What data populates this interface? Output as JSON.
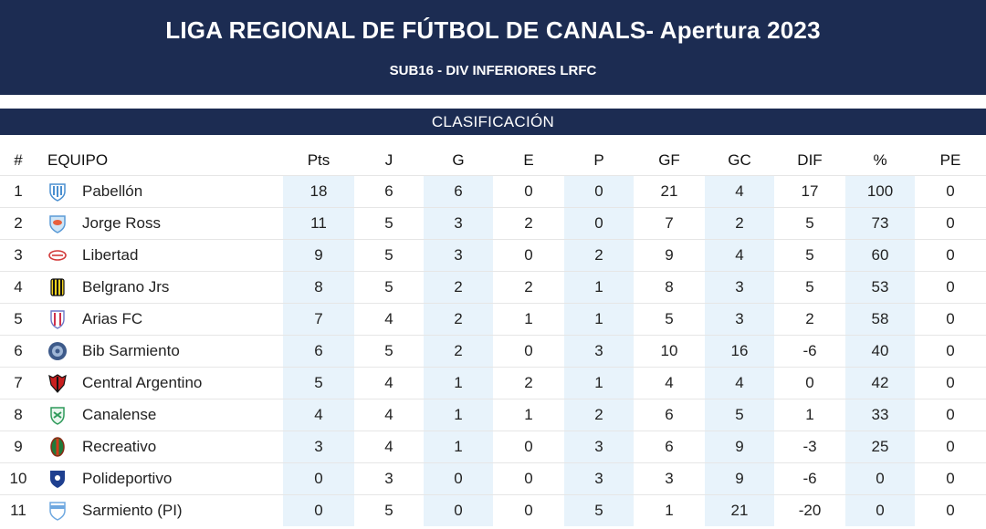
{
  "header": {
    "title": "LIGA REGIONAL DE FÚTBOL DE CANALS- Apertura 2023",
    "subtitle": "SUB16 - DIV INFERIORES LRFC"
  },
  "section_title": "CLASIFICACIÓN",
  "columns": {
    "pos": "#",
    "team": "EQUIPO",
    "pts": "Pts",
    "j": "J",
    "g": "G",
    "e": "E",
    "p": "P",
    "gf": "GF",
    "gc": "GC",
    "dif": "DIF",
    "pct": "%",
    "pe": "PE"
  },
  "colors": {
    "header_bg": "#1c2c52",
    "stripe": "#e8f3fb"
  },
  "rows": [
    {
      "pos": "1",
      "team": "Pabellón",
      "pts": "18",
      "j": "6",
      "g": "6",
      "e": "0",
      "p": "0",
      "gf": "21",
      "gc": "4",
      "dif": "17",
      "pct": "100",
      "pe": "0",
      "crest": "pabellon-crest"
    },
    {
      "pos": "2",
      "team": "Jorge Ross",
      "pts": "11",
      "j": "5",
      "g": "3",
      "e": "2",
      "p": "0",
      "gf": "7",
      "gc": "2",
      "dif": "5",
      "pct": "73",
      "pe": "0",
      "crest": "jorge-ross-crest"
    },
    {
      "pos": "3",
      "team": "Libertad",
      "pts": "9",
      "j": "5",
      "g": "3",
      "e": "0",
      "p": "2",
      "gf": "9",
      "gc": "4",
      "dif": "5",
      "pct": "60",
      "pe": "0",
      "crest": "libertad-crest"
    },
    {
      "pos": "4",
      "team": "Belgrano Jrs",
      "pts": "8",
      "j": "5",
      "g": "2",
      "e": "2",
      "p": "1",
      "gf": "8",
      "gc": "3",
      "dif": "5",
      "pct": "53",
      "pe": "0",
      "crest": "belgrano-crest"
    },
    {
      "pos": "5",
      "team": "Arias FC",
      "pts": "7",
      "j": "4",
      "g": "2",
      "e": "1",
      "p": "1",
      "gf": "5",
      "gc": "3",
      "dif": "2",
      "pct": "58",
      "pe": "0",
      "crest": "arias-crest"
    },
    {
      "pos": "6",
      "team": "Bib Sarmiento",
      "pts": "6",
      "j": "5",
      "g": "2",
      "e": "0",
      "p": "3",
      "gf": "10",
      "gc": "16",
      "dif": "-6",
      "pct": "40",
      "pe": "0",
      "crest": "bib-sarmiento-crest"
    },
    {
      "pos": "7",
      "team": "Central Argentino",
      "pts": "5",
      "j": "4",
      "g": "1",
      "e": "2",
      "p": "1",
      "gf": "4",
      "gc": "4",
      "dif": "0",
      "pct": "42",
      "pe": "0",
      "crest": "central-argentino-crest"
    },
    {
      "pos": "8",
      "team": "Canalense",
      "pts": "4",
      "j": "4",
      "g": "1",
      "e": "1",
      "p": "2",
      "gf": "6",
      "gc": "5",
      "dif": "1",
      "pct": "33",
      "pe": "0",
      "crest": "canalense-crest"
    },
    {
      "pos": "9",
      "team": "Recreativo",
      "pts": "3",
      "j": "4",
      "g": "1",
      "e": "0",
      "p": "3",
      "gf": "6",
      "gc": "9",
      "dif": "-3",
      "pct": "25",
      "pe": "0",
      "crest": "recreativo-crest"
    },
    {
      "pos": "10",
      "team": "Polideportivo",
      "pts": "0",
      "j": "3",
      "g": "0",
      "e": "0",
      "p": "3",
      "gf": "3",
      "gc": "9",
      "dif": "-6",
      "pct": "0",
      "pe": "0",
      "crest": "polideportivo-crest"
    },
    {
      "pos": "11",
      "team": "Sarmiento (PI)",
      "pts": "0",
      "j": "5",
      "g": "0",
      "e": "0",
      "p": "5",
      "gf": "1",
      "gc": "21",
      "dif": "-20",
      "pct": "0",
      "pe": "0",
      "crest": "sarmiento-pi-crest"
    }
  ]
}
